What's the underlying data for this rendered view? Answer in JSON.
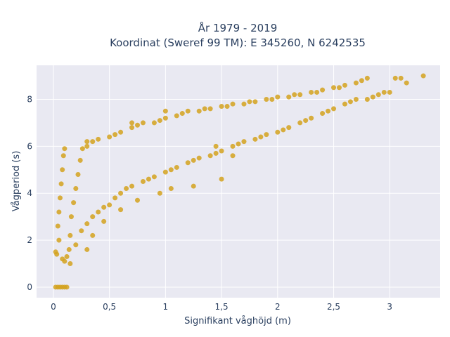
{
  "chart_data": {
    "type": "scatter",
    "title_line1": "År 1979 - 2019",
    "title_line2": "Koordinat (Sweref 99 TM): E 345260, N 6242535",
    "xlabel": "Signifikant våghöjd (m)",
    "ylabel": "Vågperiod (s)",
    "xlim": [
      -0.15,
      3.45
    ],
    "ylim": [
      -0.45,
      9.45
    ],
    "xticks": [
      0,
      0.5,
      1,
      1.5,
      2,
      2.5,
      3
    ],
    "xtick_labels": [
      "0",
      "0,5",
      "1",
      "1,5",
      "2",
      "2,5",
      "3"
    ],
    "yticks": [
      0,
      2,
      4,
      6,
      8
    ],
    "ytick_labels": [
      "0",
      "2",
      "4",
      "6",
      "8"
    ],
    "grid": true,
    "legend": false,
    "marker_color": "#d4a21f",
    "background_color": "#e9e9f2",
    "grid_color": "#ffffff",
    "series": [
      {
        "points": [
          [
            0.02,
            0.0
          ],
          [
            0.04,
            0.0
          ],
          [
            0.06,
            0.0
          ],
          [
            0.08,
            0.0
          ],
          [
            0.1,
            0.0
          ],
          [
            0.12,
            0.0
          ],
          [
            0.02,
            1.5
          ],
          [
            0.03,
            1.4
          ],
          [
            0.05,
            2.0
          ],
          [
            0.04,
            2.6
          ],
          [
            0.05,
            3.2
          ],
          [
            0.06,
            3.8
          ],
          [
            0.07,
            4.4
          ],
          [
            0.08,
            5.0
          ],
          [
            0.09,
            5.6
          ],
          [
            0.1,
            5.9
          ],
          [
            0.08,
            1.2
          ],
          [
            0.1,
            1.1
          ],
          [
            0.12,
            1.3
          ],
          [
            0.14,
            1.6
          ],
          [
            0.15,
            2.2
          ],
          [
            0.16,
            3.0
          ],
          [
            0.18,
            3.6
          ],
          [
            0.2,
            4.2
          ],
          [
            0.22,
            4.8
          ],
          [
            0.24,
            5.4
          ],
          [
            0.26,
            5.9
          ],
          [
            0.2,
            1.8
          ],
          [
            0.25,
            2.4
          ],
          [
            0.3,
            2.7
          ],
          [
            0.35,
            3.0
          ],
          [
            0.3,
            6.0
          ],
          [
            0.35,
            6.2
          ],
          [
            0.4,
            6.3
          ],
          [
            0.4,
            3.2
          ],
          [
            0.45,
            3.4
          ],
          [
            0.5,
            3.5
          ],
          [
            0.55,
            3.8
          ],
          [
            0.5,
            6.4
          ],
          [
            0.55,
            6.5
          ],
          [
            0.6,
            6.6
          ],
          [
            0.6,
            4.0
          ],
          [
            0.65,
            4.2
          ],
          [
            0.7,
            4.3
          ],
          [
            0.7,
            6.8
          ],
          [
            0.75,
            6.9
          ],
          [
            0.8,
            7.0
          ],
          [
            0.8,
            4.5
          ],
          [
            0.85,
            4.6
          ],
          [
            0.9,
            4.7
          ],
          [
            0.9,
            7.0
          ],
          [
            0.95,
            7.1
          ],
          [
            1.0,
            7.2
          ],
          [
            1.0,
            4.9
          ],
          [
            1.05,
            5.0
          ],
          [
            1.1,
            5.1
          ],
          [
            1.1,
            7.3
          ],
          [
            1.15,
            7.4
          ],
          [
            1.2,
            7.5
          ],
          [
            1.2,
            5.3
          ],
          [
            1.25,
            5.4
          ],
          [
            1.3,
            5.5
          ],
          [
            1.3,
            7.5
          ],
          [
            1.35,
            7.6
          ],
          [
            1.4,
            7.6
          ],
          [
            1.4,
            5.6
          ],
          [
            1.45,
            5.7
          ],
          [
            1.5,
            5.8
          ],
          [
            1.5,
            7.7
          ],
          [
            1.55,
            7.7
          ],
          [
            1.6,
            7.8
          ],
          [
            1.6,
            6.0
          ],
          [
            1.65,
            6.1
          ],
          [
            1.7,
            6.2
          ],
          [
            1.7,
            7.8
          ],
          [
            1.75,
            7.9
          ],
          [
            1.8,
            7.9
          ],
          [
            1.8,
            6.3
          ],
          [
            1.85,
            6.4
          ],
          [
            1.9,
            6.5
          ],
          [
            1.9,
            8.0
          ],
          [
            1.95,
            8.0
          ],
          [
            2.0,
            8.1
          ],
          [
            2.0,
            6.6
          ],
          [
            2.05,
            6.7
          ],
          [
            2.1,
            6.8
          ],
          [
            2.1,
            8.1
          ],
          [
            2.15,
            8.2
          ],
          [
            2.2,
            8.2
          ],
          [
            2.2,
            7.0
          ],
          [
            2.25,
            7.1
          ],
          [
            2.3,
            7.2
          ],
          [
            2.3,
            8.3
          ],
          [
            2.35,
            8.3
          ],
          [
            2.4,
            8.4
          ],
          [
            2.4,
            7.4
          ],
          [
            2.45,
            7.5
          ],
          [
            2.5,
            7.6
          ],
          [
            2.5,
            8.5
          ],
          [
            2.55,
            8.5
          ],
          [
            2.6,
            8.6
          ],
          [
            2.6,
            7.8
          ],
          [
            2.65,
            7.9
          ],
          [
            2.7,
            8.0
          ],
          [
            2.7,
            8.7
          ],
          [
            2.75,
            8.8
          ],
          [
            2.8,
            8.9
          ],
          [
            2.8,
            8.0
          ],
          [
            2.85,
            8.1
          ],
          [
            2.9,
            8.2
          ],
          [
            2.95,
            8.3
          ],
          [
            3.0,
            8.3
          ],
          [
            3.05,
            8.9
          ],
          [
            3.15,
            8.7
          ],
          [
            3.1,
            8.9
          ],
          [
            3.3,
            9.0
          ],
          [
            1.25,
            4.3
          ],
          [
            1.5,
            4.6
          ],
          [
            1.6,
            5.6
          ],
          [
            1.45,
            6.0
          ],
          [
            0.45,
            2.8
          ],
          [
            0.6,
            3.3
          ],
          [
            0.75,
            3.7
          ],
          [
            0.95,
            4.0
          ],
          [
            1.05,
            4.2
          ],
          [
            0.3,
            6.2
          ],
          [
            0.7,
            7.0
          ],
          [
            1.0,
            7.5
          ],
          [
            0.15,
            1.0
          ],
          [
            0.3,
            1.6
          ],
          [
            0.35,
            2.2
          ]
        ]
      }
    ]
  }
}
